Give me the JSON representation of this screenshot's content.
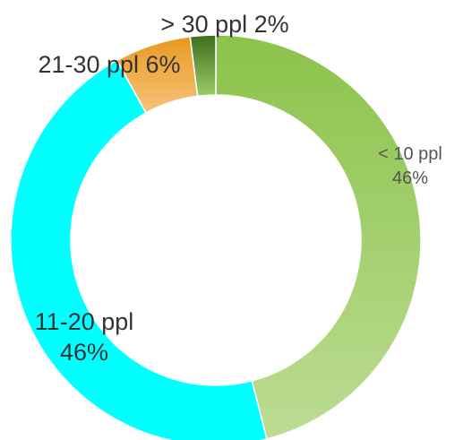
{
  "chart_data": {
    "type": "pie",
    "donut": true,
    "categories": [
      "< 10 ppl",
      "11-20 ppl",
      "21-30 ppl",
      "> 30 ppl"
    ],
    "values": [
      46,
      46,
      6,
      2
    ],
    "value_labels": [
      "46%",
      "46%",
      "6%",
      "2%"
    ],
    "colors": [
      "#8bc34a",
      "#00ffff",
      "#f0a030",
      "#6a9a3a"
    ],
    "gradients": [
      [
        "#8bc34a",
        "#bcdc94"
      ],
      [
        "#00ffff",
        "#00ffff"
      ],
      [
        "#e89a20",
        "#f7c27a"
      ],
      [
        "#3f6b1f",
        "#9ccc65"
      ]
    ],
    "legend": "none",
    "title": "",
    "labels": [
      {
        "lines": [
          "< 10 ppl",
          "46%"
        ]
      },
      {
        "lines": [
          "11-20 ppl",
          "46%"
        ]
      },
      {
        "lines": [
          "21-30 ppl 6%"
        ]
      },
      {
        "lines": [
          "> 30 ppl 2%"
        ]
      }
    ]
  }
}
